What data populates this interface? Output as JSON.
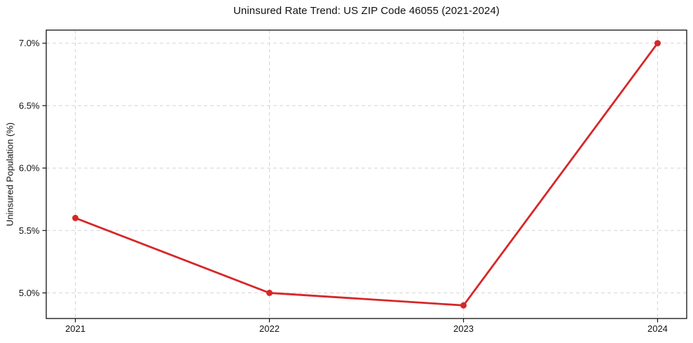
{
  "chart_data": {
    "type": "line",
    "title": "Uninsured Rate Trend: US ZIP Code 46055 (2021-2024)",
    "xlabel": "",
    "ylabel": "Uninsured Population (%)",
    "series": [
      {
        "name": "uninsured-rate",
        "x": [
          2021,
          2022,
          2023,
          2024
        ],
        "values": [
          5.6,
          5.0,
          4.9,
          7.0
        ]
      }
    ],
    "x_ticks": [
      2021,
      2022,
      2023,
      2024
    ],
    "x_tick_labels": [
      "2021",
      "2022",
      "2023",
      "2024"
    ],
    "y_ticks": [
      5.0,
      5.5,
      6.0,
      6.5,
      7.0
    ],
    "y_tick_labels": [
      "5.0%",
      "5.5%",
      "6.0%",
      "6.5%",
      "7.0%"
    ],
    "xlim": [
      2020.85,
      2024.15
    ],
    "ylim": [
      4.795,
      7.105
    ],
    "grid": true,
    "grid_style": "dashed",
    "legend": "none",
    "marker": "circle",
    "colors": {
      "line": "#d62728",
      "marker": "#d62728",
      "grid": "#d4d4d4",
      "frame": "#111111",
      "text": "#111111",
      "background": "#ffffff"
    }
  }
}
